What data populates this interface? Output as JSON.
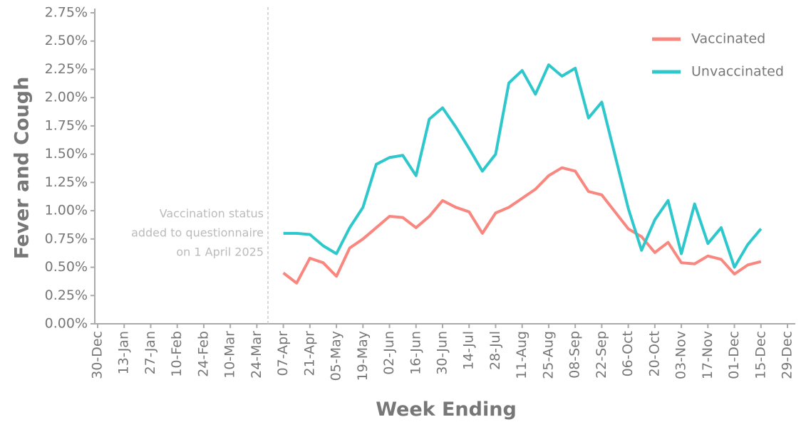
{
  "chart_data": {
    "type": "line",
    "y_label": "Fever and Cough",
    "x_label": "Week Ending",
    "annotation": [
      "Vaccination status",
      "added to questionnaire",
      "on 1 April 2025"
    ],
    "categories": [
      "30-Dec",
      null,
      "13-Jan",
      null,
      "27-Jan",
      null,
      "10-Feb",
      null,
      "24-Feb",
      null,
      "10-Mar",
      null,
      "24-Mar",
      null,
      "07-Apr",
      null,
      "21-Apr",
      null,
      "05-May",
      null,
      "19-May",
      null,
      "02-Jun",
      null,
      "16-Jun",
      null,
      "30-Jun",
      null,
      "14-Jul",
      null,
      "28-Jul",
      null,
      "11-Aug",
      null,
      "25-Aug",
      null,
      "08-Sep",
      null,
      "22-Sep",
      null,
      "06-Oct",
      null,
      "20-Oct",
      null,
      "03-Nov",
      null,
      "17-Nov",
      null,
      "01-Dec",
      null,
      "15-Dec",
      null,
      "29-Dec"
    ],
    "series": [
      {
        "name": "Vaccinated",
        "color": "#f8877f",
        "values": [
          null,
          null,
          null,
          null,
          null,
          null,
          null,
          null,
          null,
          null,
          null,
          null,
          null,
          null,
          0.45,
          0.36,
          0.58,
          0.54,
          0.42,
          0.67,
          0.75,
          0.85,
          0.95,
          0.94,
          0.85,
          0.95,
          1.09,
          1.03,
          0.99,
          0.8,
          0.98,
          1.03,
          1.11,
          1.19,
          1.31,
          1.38,
          1.35,
          1.17,
          1.14,
          0.99,
          0.84,
          0.77,
          0.63,
          0.72,
          0.54,
          0.53,
          0.6,
          0.57,
          0.44,
          0.52,
          0.55,
          null,
          null
        ]
      },
      {
        "name": "Unvaccinated",
        "color": "#2ec8cc",
        "values": [
          null,
          null,
          null,
          null,
          null,
          null,
          null,
          null,
          null,
          null,
          null,
          null,
          null,
          null,
          0.8,
          0.8,
          0.79,
          0.69,
          0.62,
          0.85,
          1.03,
          1.41,
          1.47,
          1.49,
          1.31,
          1.81,
          1.91,
          1.74,
          1.55,
          1.35,
          1.5,
          2.13,
          2.24,
          2.03,
          2.29,
          2.19,
          2.26,
          1.82,
          1.96,
          1.49,
          1.02,
          0.65,
          0.92,
          1.09,
          0.62,
          1.06,
          0.71,
          0.85,
          0.5,
          0.7,
          0.84,
          null,
          null
        ]
      }
    ],
    "ylim": [
      0,
      2.75
    ],
    "yticks": [
      {
        "value": 0,
        "label": "0.00%"
      },
      {
        "value": 0.25,
        "label": "0.25%"
      },
      {
        "value": 0.5,
        "label": "0.50%"
      },
      {
        "value": 0.75,
        "label": "0.75%"
      },
      {
        "value": 1,
        "label": "1.00%"
      },
      {
        "value": 1.25,
        "label": "1.25%"
      },
      {
        "value": 1.5,
        "label": "1.50%"
      },
      {
        "value": 1.75,
        "label": "1.75%"
      },
      {
        "value": 2,
        "label": "2.00%"
      },
      {
        "value": 2.25,
        "label": "2.25%"
      },
      {
        "value": 2.5,
        "label": "2.50%"
      },
      {
        "value": 2.75,
        "label": "2.75%"
      }
    ],
    "legend": "upper right"
  }
}
